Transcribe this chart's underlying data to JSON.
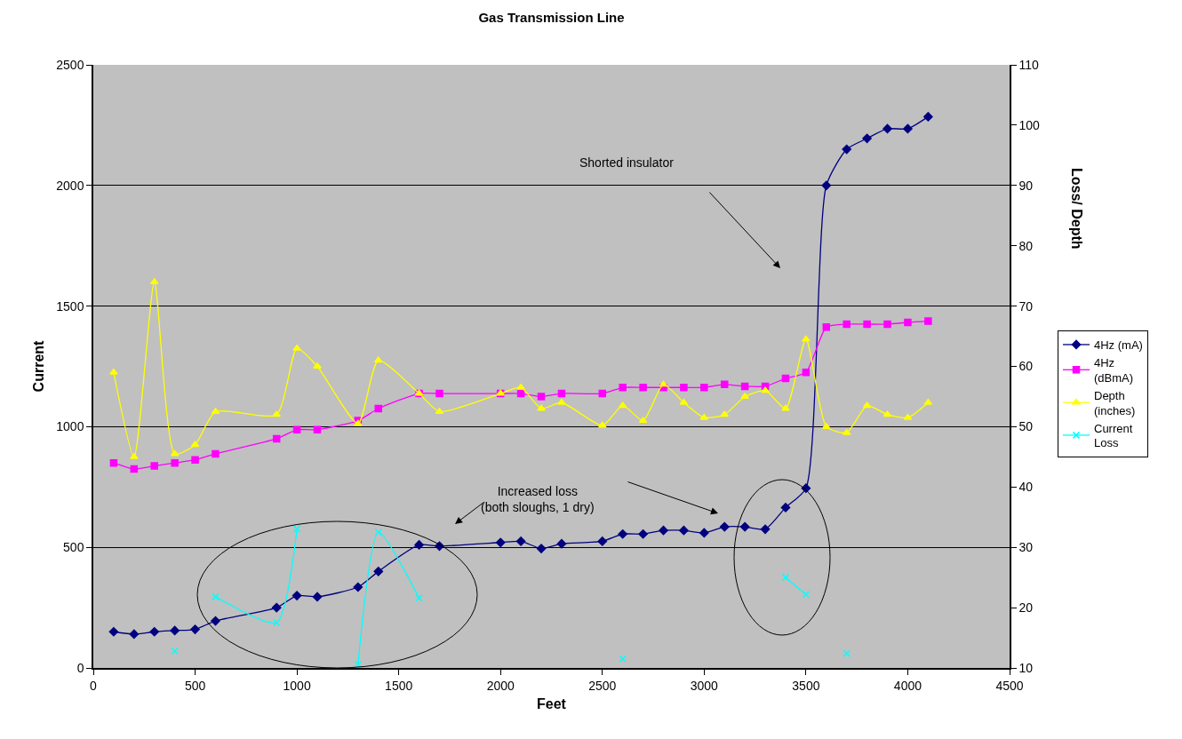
{
  "chart_data": {
    "type": "line",
    "title": "Gas Transmission Line",
    "xlabel": "Feet",
    "ylabel": "Current",
    "y2label": "Loss/ Depth",
    "x": [
      100,
      200,
      300,
      400,
      500,
      600,
      900,
      1000,
      1100,
      1300,
      1400,
      1600,
      1700,
      2000,
      2100,
      2200,
      2300,
      2500,
      2600,
      2700,
      2800,
      2900,
      3000,
      3100,
      3200,
      3300,
      3400,
      3500,
      3600,
      3700,
      3800,
      3900,
      4000,
      4100
    ],
    "series": [
      {
        "name": "4Hz (mA)",
        "color": "#000080",
        "marker": "diamond",
        "values": [
          150,
          140,
          150,
          155,
          160,
          195,
          250,
          300,
          295,
          335,
          400,
          510,
          505,
          520,
          525,
          495,
          515,
          525,
          555,
          555,
          570,
          570,
          560,
          585,
          585,
          575,
          665,
          745,
          2000,
          2150,
          2195,
          2235,
          2235,
          2285
        ]
      },
      {
        "name": "4Hz (dBmA)",
        "color": "#ff00ff",
        "marker": "square",
        "axis": "y2",
        "values": [
          44,
          43,
          43.5,
          44,
          44.5,
          45.5,
          48,
          49.5,
          49.5,
          51,
          53,
          55.5,
          55.5,
          55.5,
          55.5,
          55,
          55.5,
          55.5,
          56.5,
          56.5,
          56.5,
          56.5,
          56.5,
          57,
          56.7,
          56.7,
          58,
          59,
          66.5,
          67,
          67,
          67,
          67.3,
          67.5
        ]
      },
      {
        "name": "Depth (inches)",
        "color": "#ffff00",
        "marker": "triangle",
        "axis": "y2",
        "values": [
          59,
          45,
          74,
          45.5,
          47,
          52.5,
          52,
          63,
          60,
          50.5,
          61,
          55.5,
          52.5,
          55.5,
          56.5,
          53,
          54,
          50.2,
          53.5,
          51,
          57,
          54,
          51.5,
          52,
          55,
          56,
          53,
          64.5,
          50,
          49,
          53.5,
          52,
          51.5,
          54
        ]
      },
      {
        "name": "Current Loss",
        "color": "#00ffff",
        "marker": "cross",
        "axis": "y2",
        "values": [
          null,
          null,
          null,
          12.8,
          null,
          21.8,
          17.5,
          33,
          null,
          10.6,
          32.5,
          21.6,
          null,
          null,
          null,
          null,
          null,
          null,
          11.5,
          null,
          null,
          null,
          null,
          null,
          null,
          null,
          25,
          22.2,
          null,
          12.4,
          null,
          null,
          null,
          null
        ]
      }
    ],
    "xlim": [
      0,
      4500
    ],
    "xticks": [
      0,
      500,
      1000,
      1500,
      2000,
      2500,
      3000,
      3500,
      4000,
      4500
    ],
    "ylim": [
      0,
      2500
    ],
    "yticks": [
      0,
      500,
      1000,
      1500,
      2000,
      2500
    ],
    "y2lim": [
      10,
      110
    ],
    "y2ticks": [
      10,
      20,
      30,
      40,
      50,
      60,
      70,
      80,
      90,
      100,
      110
    ],
    "grid": "y",
    "legend": "right",
    "annotations": [
      "Shorted insulator",
      "Increased loss\n(both sloughs, 1 dry)"
    ]
  }
}
